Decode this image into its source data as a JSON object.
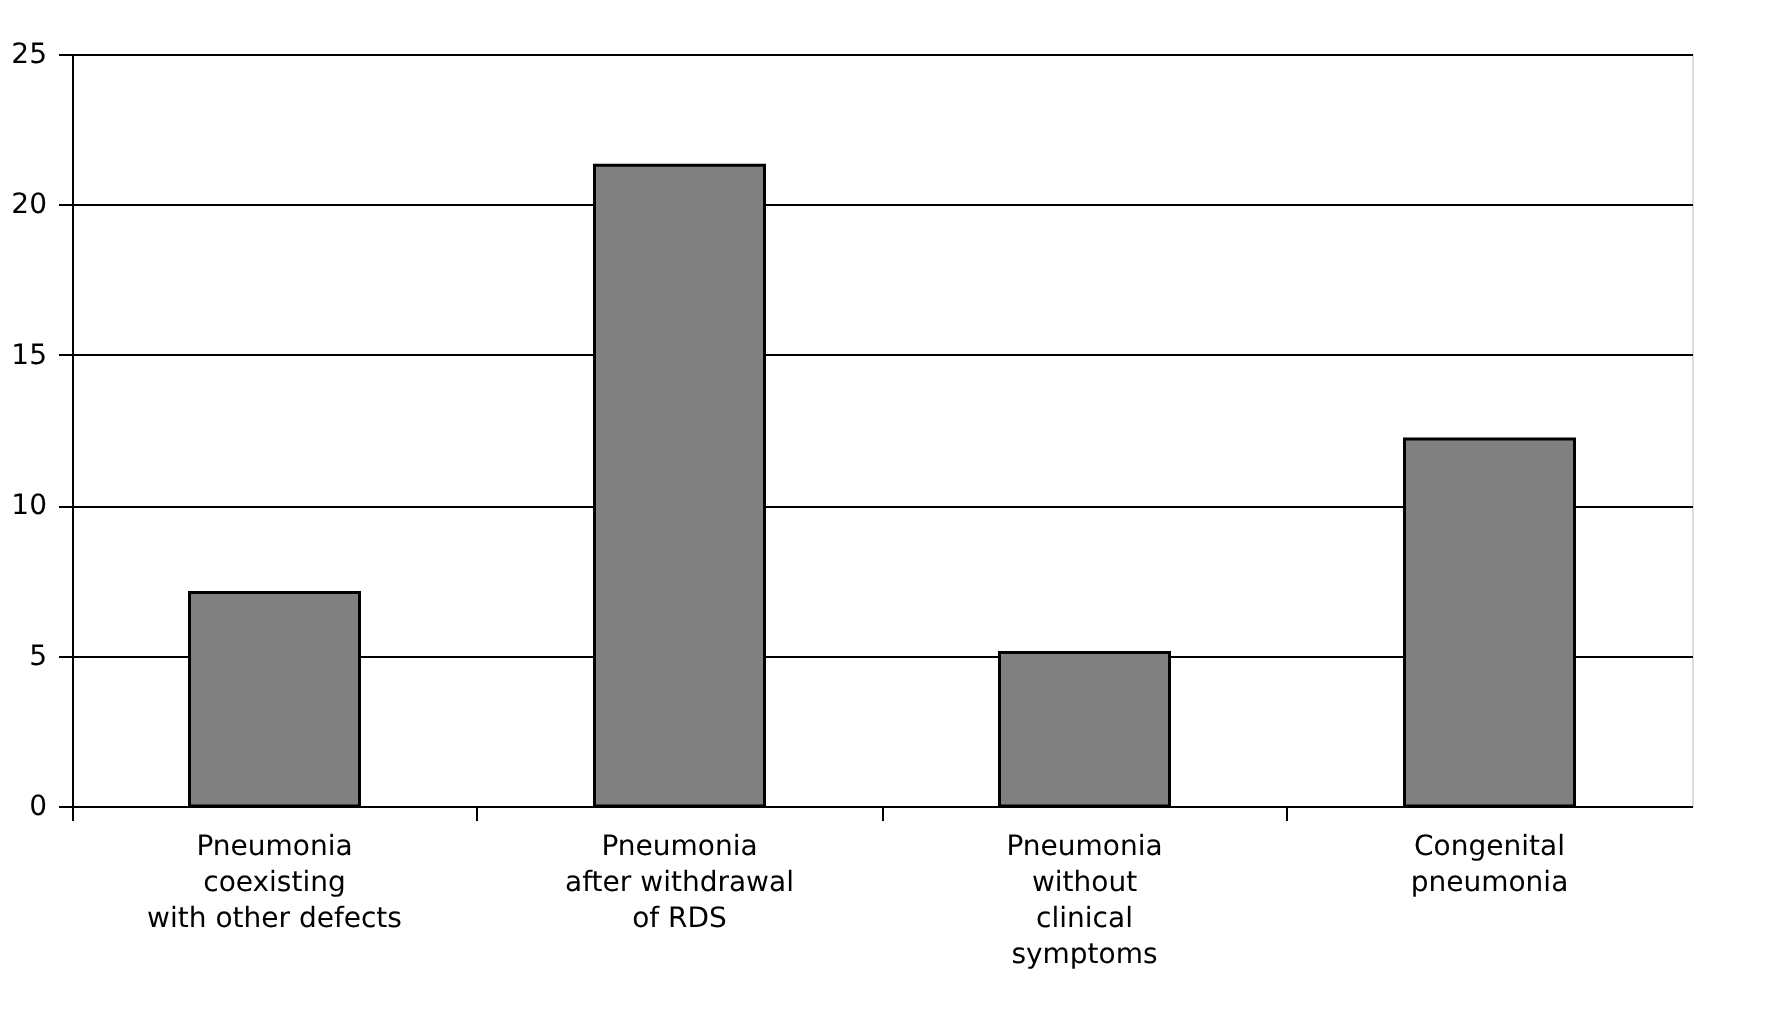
{
  "chart_data": {
    "type": "bar",
    "categories": [
      "Pneumonia\ncoexisting\nwith other defects",
      "Pneumonia\nafter withdrawal\nof RDS",
      "Pneumonia\nwithout\nclinical\nsymptoms",
      "Congenital\npneumonia"
    ],
    "values": [
      7.1,
      21.3,
      5.1,
      12.2
    ],
    "color": "#808080",
    "ylim": [
      0,
      25
    ],
    "yticks": [
      0,
      5,
      10,
      15,
      20,
      25
    ],
    "grid": "y"
  }
}
